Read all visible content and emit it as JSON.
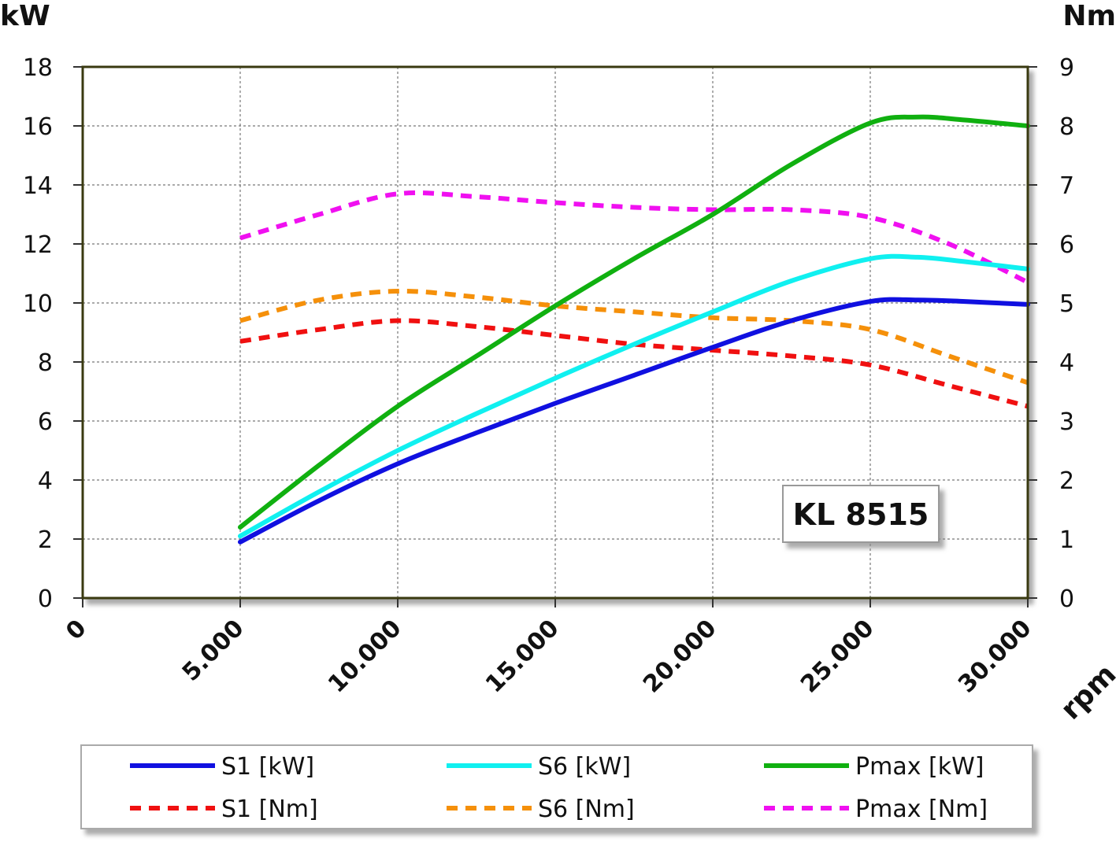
{
  "chart_data": {
    "type": "line",
    "title": "",
    "model_label": "KL 8515",
    "xlabel": "rpm",
    "ylabel_left": "kW",
    "ylabel_right": "Nm",
    "xlim": [
      0,
      30000
    ],
    "ylim_left": [
      0,
      18
    ],
    "ylim_right": [
      0,
      9
    ],
    "x_ticks": [
      0,
      5000,
      10000,
      15000,
      20000,
      25000,
      30000
    ],
    "x_tick_labels": [
      "0",
      "5.000",
      "10.000",
      "15.000",
      "20.000",
      "25.000",
      "30.000"
    ],
    "y_left_ticks": [
      0,
      2,
      4,
      6,
      8,
      10,
      12,
      14,
      16,
      18
    ],
    "y_left_tick_labels": [
      "0",
      "2",
      "4",
      "6",
      "8",
      "10",
      "12",
      "14",
      "16",
      "18"
    ],
    "y_right_ticks": [
      0,
      1,
      2,
      3,
      4,
      5,
      6,
      7,
      8,
      9
    ],
    "y_right_tick_labels": [
      "0",
      "1",
      "2",
      "3",
      "4",
      "5",
      "6",
      "7",
      "8",
      "9"
    ],
    "grid": true,
    "legend_position": "bottom",
    "series": [
      {
        "name": "S1 [kW]",
        "axis": "left",
        "style": "solid",
        "color": "#1010e0",
        "x": [
          5000,
          7500,
          10000,
          12500,
          15000,
          17500,
          20000,
          22500,
          25000,
          26500,
          28000,
          30000
        ],
        "y": [
          1.9,
          3.3,
          4.55,
          5.6,
          6.6,
          7.55,
          8.5,
          9.4,
          10.05,
          10.1,
          10.05,
          9.95
        ]
      },
      {
        "name": "S6 [kW]",
        "axis": "left",
        "style": "solid",
        "color": "#10f0f0",
        "x": [
          5000,
          7500,
          10000,
          12500,
          15000,
          17500,
          20000,
          22500,
          25000,
          26500,
          28000,
          30000
        ],
        "y": [
          2.1,
          3.6,
          5.0,
          6.25,
          7.45,
          8.6,
          9.7,
          10.75,
          11.5,
          11.55,
          11.4,
          11.15
        ]
      },
      {
        "name": "Pmax [kW]",
        "axis": "left",
        "style": "solid",
        "color": "#10b010",
        "x": [
          5000,
          7500,
          10000,
          12500,
          15000,
          17500,
          20000,
          22500,
          25000,
          26500,
          28000,
          30000
        ],
        "y": [
          2.4,
          4.5,
          6.5,
          8.2,
          9.9,
          11.5,
          13.0,
          14.7,
          16.1,
          16.3,
          16.2,
          16.0
        ]
      },
      {
        "name": "S1 [Nm]",
        "axis": "right",
        "style": "dashed",
        "color": "#f01010",
        "x": [
          5000,
          7500,
          10000,
          12500,
          15000,
          17500,
          20000,
          22500,
          25000,
          27500,
          30000
        ],
        "y": [
          4.35,
          4.55,
          4.7,
          4.6,
          4.45,
          4.3,
          4.2,
          4.1,
          3.95,
          3.6,
          3.25
        ]
      },
      {
        "name": "S6 [Nm]",
        "axis": "right",
        "style": "dashed",
        "color": "#f5900a",
        "x": [
          5000,
          7500,
          10000,
          12500,
          15000,
          17500,
          20000,
          22500,
          25000,
          27500,
          30000
        ],
        "y": [
          4.7,
          5.05,
          5.2,
          5.1,
          4.95,
          4.85,
          4.75,
          4.7,
          4.55,
          4.1,
          3.65
        ]
      },
      {
        "name": "Pmax [Nm]",
        "axis": "right",
        "style": "dashed",
        "color": "#f010f0",
        "x": [
          5000,
          7500,
          10000,
          12500,
          15000,
          17500,
          20000,
          22500,
          25000,
          27500,
          30000
        ],
        "y": [
          6.1,
          6.5,
          6.85,
          6.8,
          6.7,
          6.62,
          6.58,
          6.58,
          6.45,
          6.0,
          5.35
        ]
      }
    ]
  }
}
